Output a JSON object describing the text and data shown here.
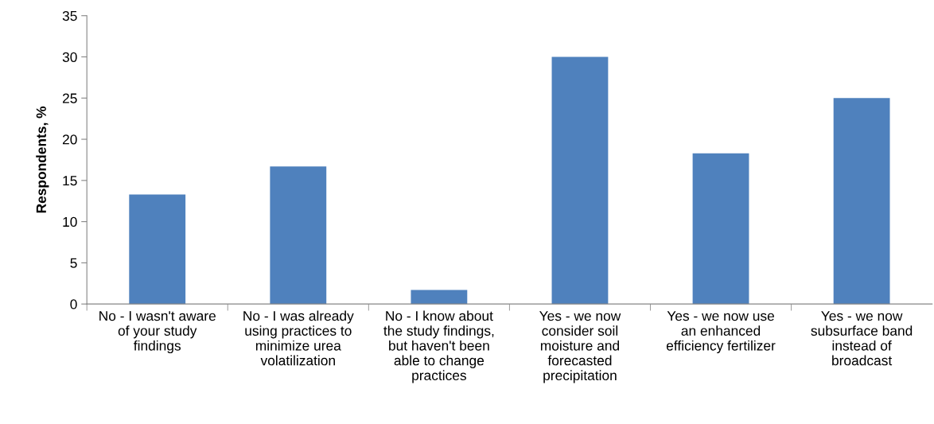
{
  "chart_data": {
    "type": "bar",
    "ylabel": "Respondents, %",
    "categories": [
      "No - I wasn't aware\nof your study\nfindings",
      "No - I was already\nusing practices to\nminimize urea\nvolatilization",
      "No - I know about\nthe study findings,\nbut haven't been\nable to change\npractices",
      "Yes - we now\nconsider soil\nmoisture and\nforecasted\nprecipitation",
      "Yes - we now use\nan enhanced\nefficiency fertilizer",
      "Yes - we now\nsubsurface band\ninstead of\nbroadcast"
    ],
    "values": [
      13.3,
      16.7,
      1.7,
      30,
      18.3,
      25
    ],
    "color": "#4f81bd",
    "ylim": [
      0,
      35
    ],
    "yticks": [
      0,
      5,
      10,
      15,
      20,
      25,
      30,
      35
    ],
    "grid": false
  }
}
